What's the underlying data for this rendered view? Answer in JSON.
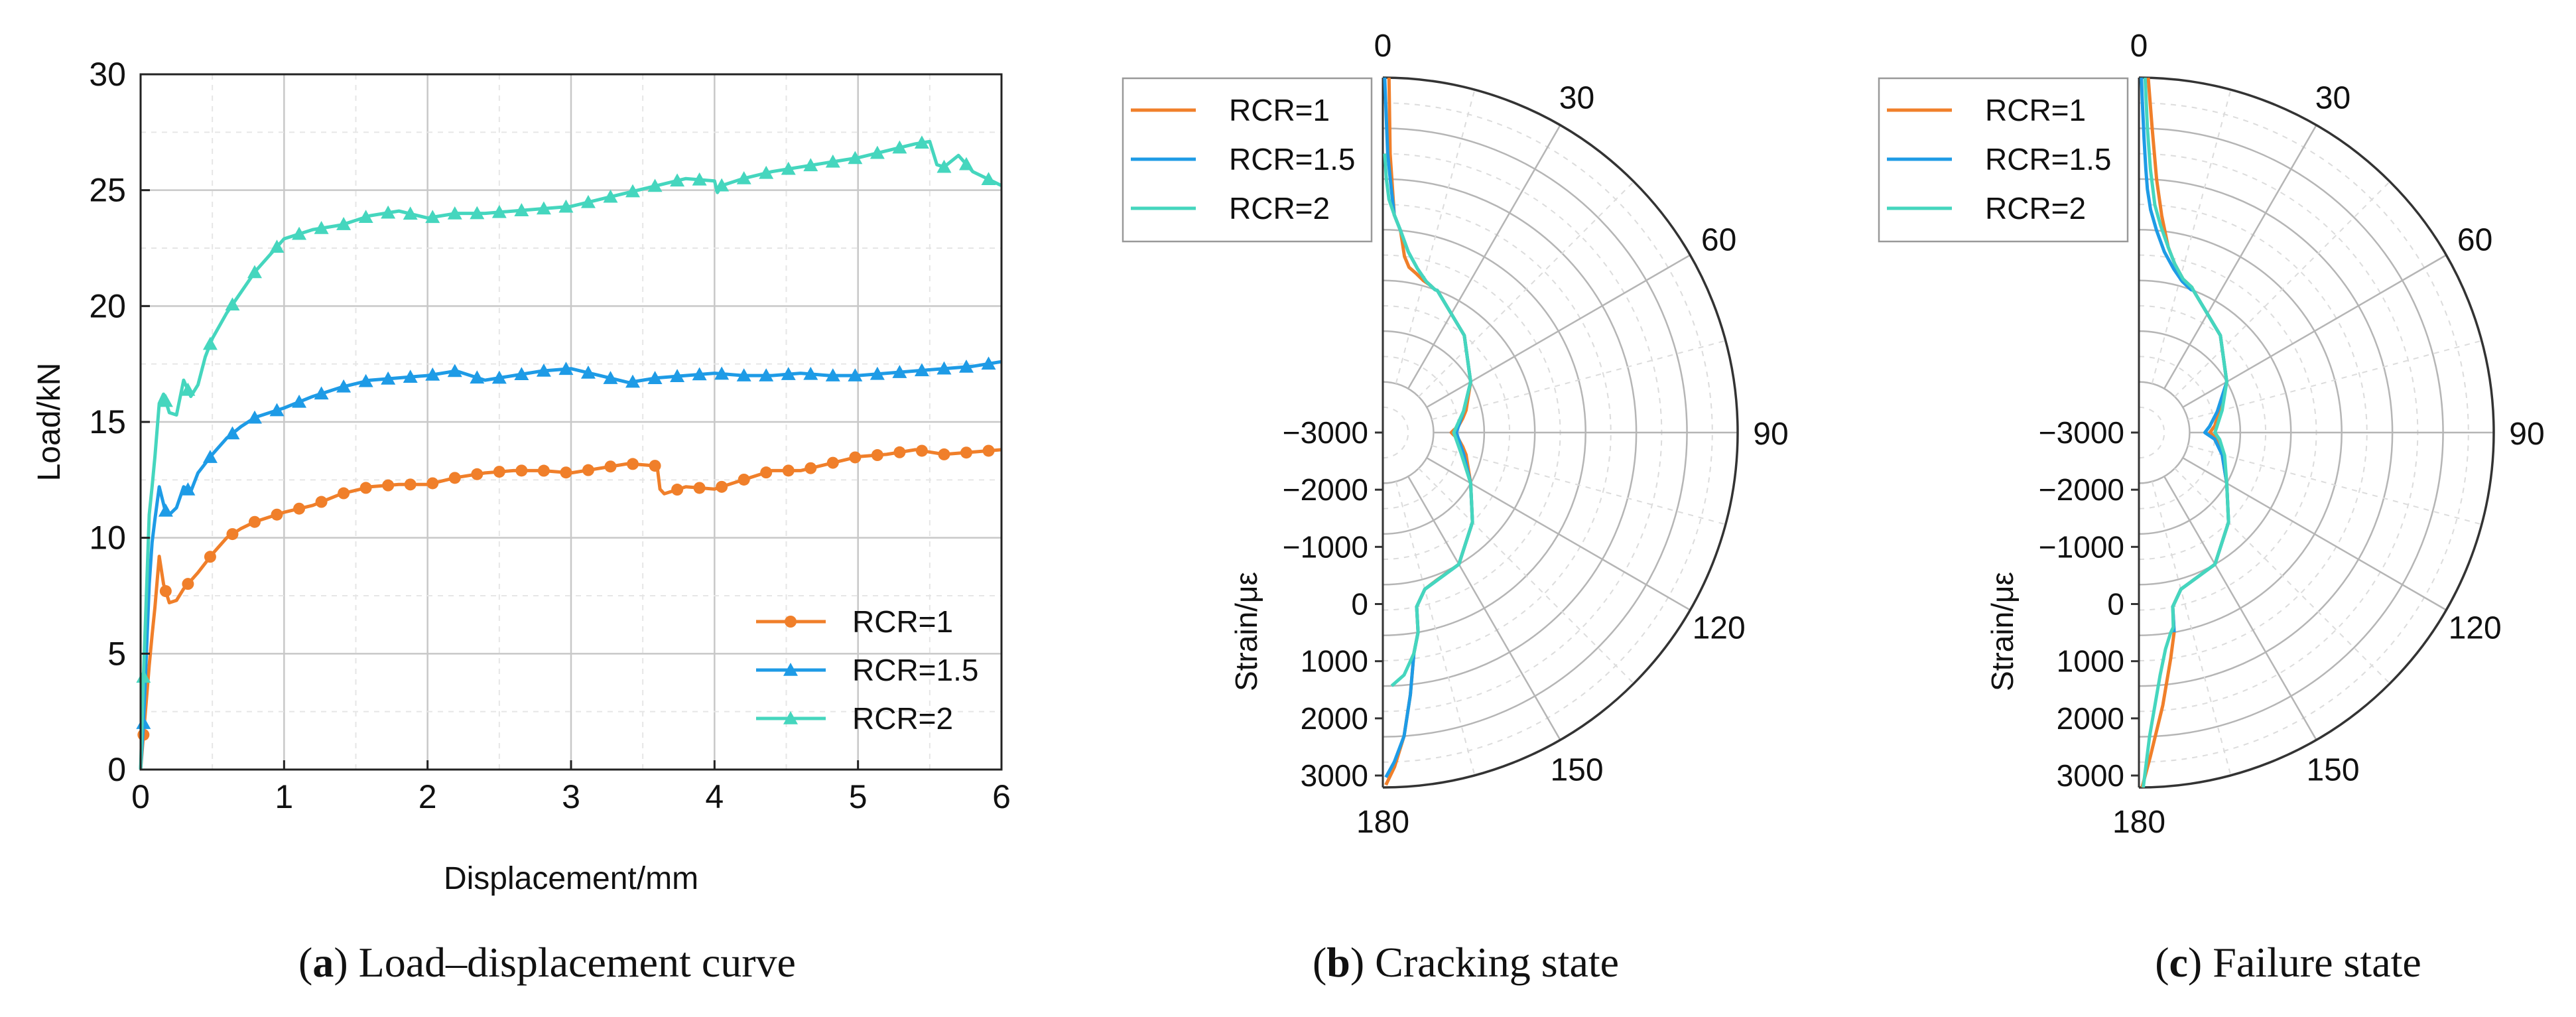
{
  "chart_data": [
    {
      "type": "line",
      "panel": "a",
      "caption_letter": "a",
      "caption_text": " Load–displacement curve",
      "xlabel": "Displacement/mm",
      "ylabel": "Load/kN",
      "xlim": [
        0,
        6
      ],
      "ylim": [
        0,
        30
      ],
      "xticks": [
        "0",
        "1",
        "2",
        "3",
        "4",
        "5",
        "6"
      ],
      "yticks": [
        "0",
        "5",
        "10",
        "15",
        "20",
        "25",
        "30"
      ],
      "grid": true,
      "legend_position": "bottom-right",
      "series": [
        {
          "name": "RCR=1",
          "color": "#F07F2A",
          "marker": "circle",
          "x": [
            0,
            0.02,
            0.04,
            0.06,
            0.08,
            0.1,
            0.13,
            0.16,
            0.2,
            0.25,
            0.3,
            0.4,
            0.5,
            0.6,
            0.7,
            0.8,
            0.9,
            1.0,
            1.2,
            1.4,
            1.6,
            1.8,
            2.0,
            2.2,
            2.4,
            2.6,
            2.8,
            3.0,
            3.2,
            3.4,
            3.6,
            3.62,
            3.65,
            3.8,
            4.0,
            4.2,
            4.4,
            4.6,
            4.8,
            5.0,
            5.2,
            5.4,
            5.6,
            5.8,
            6.0
          ],
          "y": [
            0,
            1.5,
            3,
            4.5,
            5.8,
            7,
            9.2,
            8,
            7.2,
            7.3,
            7.8,
            8.5,
            9.3,
            10.0,
            10.4,
            10.7,
            10.9,
            11.1,
            11.4,
            11.9,
            12.2,
            12.3,
            12.3,
            12.6,
            12.8,
            12.9,
            12.9,
            12.8,
            13.0,
            13.2,
            13.1,
            12.1,
            11.9,
            12.2,
            12.1,
            12.5,
            12.9,
            12.9,
            13.2,
            13.5,
            13.6,
            13.8,
            13.6,
            13.7,
            13.8
          ]
        },
        {
          "name": "RCR=1.5",
          "color": "#1E9BE6",
          "marker": "triangle",
          "x": [
            0,
            0.02,
            0.04,
            0.06,
            0.08,
            0.1,
            0.13,
            0.17,
            0.2,
            0.25,
            0.3,
            0.35,
            0.4,
            0.5,
            0.6,
            0.7,
            0.8,
            0.9,
            1.0,
            1.2,
            1.4,
            1.6,
            1.8,
            2.0,
            2.2,
            2.4,
            2.6,
            2.8,
            3.0,
            3.2,
            3.4,
            3.6,
            3.8,
            4.0,
            4.2,
            4.4,
            4.6,
            4.8,
            5.0,
            5.2,
            5.4,
            5.6,
            5.8,
            6.0
          ],
          "y": [
            0,
            2,
            5,
            8,
            9.8,
            10.8,
            12.2,
            11.2,
            11.0,
            11.3,
            12.2,
            12.0,
            12.8,
            13.6,
            14.3,
            14.8,
            15.2,
            15.4,
            15.6,
            16.1,
            16.5,
            16.8,
            16.9,
            17.0,
            17.2,
            16.8,
            17.0,
            17.2,
            17.3,
            17.0,
            16.7,
            16.9,
            17.0,
            17.1,
            17.0,
            17.0,
            17.1,
            17.0,
            17.0,
            17.1,
            17.2,
            17.3,
            17.4,
            17.6
          ]
        },
        {
          "name": "RCR=2",
          "color": "#45D6BE",
          "marker": "triangle",
          "x": [
            0,
            0.02,
            0.04,
            0.06,
            0.08,
            0.1,
            0.13,
            0.16,
            0.2,
            0.25,
            0.3,
            0.35,
            0.4,
            0.45,
            0.5,
            0.6,
            0.7,
            0.8,
            0.9,
            1.0,
            1.2,
            1.4,
            1.6,
            1.8,
            2.0,
            2.2,
            2.4,
            2.6,
            2.8,
            3.0,
            3.2,
            3.4,
            3.6,
            3.8,
            4.0,
            4.02,
            4.05,
            4.2,
            4.4,
            4.6,
            4.8,
            5.0,
            5.2,
            5.4,
            5.5,
            5.55,
            5.6,
            5.7,
            5.8,
            5.9,
            6.0
          ],
          "y": [
            0,
            4,
            7.5,
            11,
            12.2,
            13.5,
            15.8,
            16.2,
            15.4,
            15.3,
            16.8,
            16.1,
            16.6,
            17.8,
            18.6,
            19.7,
            20.6,
            21.5,
            22.2,
            22.9,
            23.3,
            23.5,
            23.9,
            24.1,
            23.8,
            24.0,
            24.0,
            24.1,
            24.2,
            24.3,
            24.6,
            24.9,
            25.2,
            25.5,
            25.4,
            24.9,
            25.2,
            25.5,
            25.8,
            26.0,
            26.2,
            26.4,
            26.7,
            27.0,
            27.1,
            26.1,
            26.0,
            26.5,
            25.8,
            25.5,
            25.2
          ]
        }
      ]
    },
    {
      "type": "polar",
      "panel": "b",
      "caption_letter": "b",
      "caption_text": " Cracking state",
      "angle_ticks": [
        "0",
        "30",
        "60",
        "90",
        "120",
        "150",
        "180"
      ],
      "radial_ticks": [
        "−3000",
        "−2000",
        "−1000",
        "0",
        "1000",
        "2000",
        "3000"
      ],
      "radial_values": [
        -3000,
        -2000,
        -1000,
        0,
        1000,
        2000,
        3000
      ],
      "rlim": [
        -4000,
        3000
      ],
      "radial_label": "Strain/με",
      "legend_position": "top-left",
      "series": [
        {
          "name": "RCR=1",
          "color": "#F07F2A",
          "angle": [
            1.0,
            1.5,
            3,
            5,
            7,
            9,
            12,
            15,
            18,
            20,
            21,
            40,
            60,
            75,
            80,
            85,
            88,
            90,
            92,
            95,
            100,
            105,
            120,
            135,
            150,
            160,
            165,
            169,
            170,
            172,
            174,
            176,
            178,
            179.5
          ],
          "strain": [
            3000,
            1500,
            300,
            0,
            -500,
            -700,
            -800,
            -900,
            -950,
            -1000,
            -1000,
            -1500,
            -2000,
            -2300,
            -2400,
            -2500,
            -2600,
            -2650,
            -2600,
            -2500,
            -2400,
            -2300,
            -2000,
            -1500,
            -1000,
            -900,
            -800,
            -500,
            0,
            400,
            1200,
            2000,
            2600,
            2950
          ]
        },
        {
          "name": "RCR=1.5",
          "color": "#1E9BE6",
          "angle": [
            0.3,
            0.5,
            1,
            2,
            3,
            5,
            8,
            12,
            16,
            20,
            21,
            40,
            60,
            75,
            90,
            105,
            120,
            135,
            150,
            165,
            169,
            170,
            172,
            174,
            176,
            178,
            179.5
          ],
          "strain": [
            3000,
            2500,
            1500,
            800,
            300,
            0,
            -400,
            -700,
            -900,
            -1000,
            -1000,
            -1500,
            -2000,
            -2350,
            -2550,
            -2350,
            -2000,
            -1500,
            -1000,
            -800,
            -500,
            0,
            400,
            1200,
            2000,
            2500,
            2800
          ]
        },
        {
          "name": "RCR=2",
          "color": "#45D6BE",
          "angle": [
            0.4,
            0.8,
            1.5,
            3,
            5,
            8,
            12,
            16,
            20,
            21,
            40,
            60,
            75,
            90,
            105,
            120,
            135,
            150,
            165,
            169,
            170,
            172,
            175,
            178
          ],
          "strain": [
            1500,
            1000,
            600,
            300,
            0,
            -400,
            -700,
            -900,
            -1000,
            -1000,
            -1500,
            -2000,
            -2350,
            -2600,
            -2400,
            -2000,
            -1500,
            -1000,
            -800,
            -500,
            0,
            400,
            800,
            1000
          ]
        }
      ]
    },
    {
      "type": "polar",
      "panel": "c",
      "caption_letter": "c",
      "caption_text": " Failure state",
      "angle_ticks": [
        "0",
        "30",
        "60",
        "90",
        "120",
        "150",
        "180"
      ],
      "radial_ticks": [
        "−3000",
        "−2000",
        "−1000",
        "0",
        "1000",
        "2000",
        "3000"
      ],
      "radial_values": [
        -3000,
        -2000,
        -1000,
        0,
        1000,
        2000,
        3000
      ],
      "rlim": [
        -4000,
        3000
      ],
      "radial_label": "Strain/με",
      "legend_position": "top-left",
      "series": [
        {
          "name": "RCR=1",
          "color": "#F07F2A",
          "angle": [
            1.5,
            2.5,
            4,
            6,
            9,
            12,
            16,
            20,
            21,
            40,
            60,
            75,
            85,
            90,
            95,
            105,
            120,
            135,
            150,
            165,
            169,
            170,
            172,
            175,
            178,
            179.5
          ],
          "strain": [
            3000,
            2000,
            1000,
            300,
            -300,
            -600,
            -850,
            -950,
            -1000,
            -1500,
            -2000,
            -2350,
            -2500,
            -2600,
            -2450,
            -2300,
            -2000,
            -1500,
            -1000,
            -800,
            -500,
            0,
            500,
            1400,
            2400,
            3000
          ]
        },
        {
          "name": "RCR=1.5",
          "color": "#1E9BE6",
          "angle": [
            0.4,
            0.6,
            1,
            1.5,
            2,
            3,
            5,
            8,
            12,
            16,
            20,
            21,
            40,
            60,
            75,
            85,
            90,
            95,
            105,
            120,
            135,
            150,
            165,
            169,
            170
          ],
          "strain": [
            3000,
            2500,
            1800,
            1200,
            800,
            400,
            0,
            -400,
            -700,
            -900,
            -1000,
            -1000,
            -1500,
            -2000,
            -2400,
            -2600,
            -2700,
            -2500,
            -2300,
            -2000,
            -1500,
            -1000,
            -800,
            -500,
            0
          ]
        },
        {
          "name": "RCR=2",
          "color": "#45D6BE",
          "angle": [
            1.0,
            1.6,
            2.5,
            4,
            6,
            9,
            12,
            16,
            20,
            21,
            40,
            60,
            75,
            85,
            90,
            95,
            105,
            120,
            135,
            150,
            165,
            169,
            170,
            171,
            173,
            175,
            178,
            179.3
          ],
          "strain": [
            3000,
            2000,
            1200,
            500,
            100,
            -300,
            -600,
            -850,
            -950,
            -1000,
            -1500,
            -2000,
            -2300,
            -2450,
            -2500,
            -2400,
            -2250,
            -2000,
            -1500,
            -1000,
            -800,
            -500,
            -100,
            0,
            300,
            800,
            2000,
            3000
          ]
        }
      ]
    }
  ]
}
